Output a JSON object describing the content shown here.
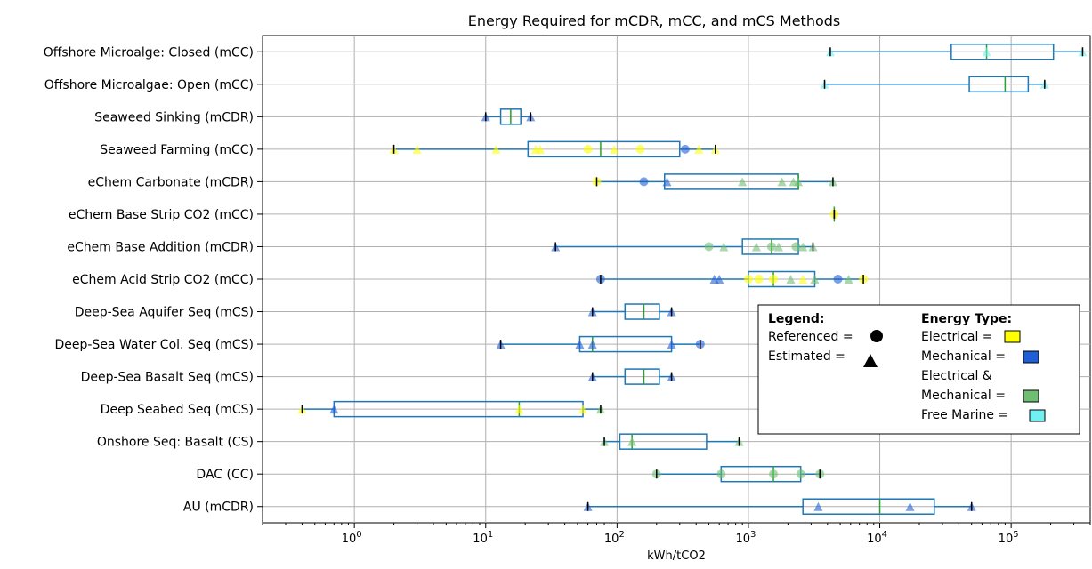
{
  "chart_data": {
    "type": "box",
    "title": "Energy Required for mCDR, mCC, and mCS Methods",
    "xlabel": "kWh/tCO2",
    "ylabel": "",
    "xscale": "log",
    "xlim": [
      0.2,
      400000
    ],
    "xticks": [
      {
        "value": 1,
        "base": "10",
        "exp": "0"
      },
      {
        "value": 10,
        "base": "10",
        "exp": "1"
      },
      {
        "value": 100,
        "base": "10",
        "exp": "2"
      },
      {
        "value": 1000,
        "base": "10",
        "exp": "3"
      },
      {
        "value": 10000,
        "base": "10",
        "exp": "4"
      },
      {
        "value": 100000,
        "base": "10",
        "exp": "5"
      }
    ],
    "grid": true,
    "colors": {
      "box": "#1f77b4",
      "median": "#2ca02c",
      "electrical": "#ffff00",
      "mechanical": "#1f5fd6",
      "electrical_mechanical": "#6fbf73",
      "free_marine": "#70f0f0"
    },
    "categories": [
      {
        "label": "Offshore Microalge: Closed (mCC)",
        "whisker": [
          4200,
          350000
        ],
        "box": [
          35000,
          210000
        ],
        "median": 65000,
        "points": [
          {
            "x": 4200,
            "shape": "tri",
            "energy": "free_marine"
          },
          {
            "x": 65000,
            "shape": "tri",
            "energy": "free_marine"
          },
          {
            "x": 350000,
            "shape": "tri",
            "energy": "free_marine"
          }
        ]
      },
      {
        "label": "Offshore Microalgae: Open (mCC)",
        "whisker": [
          3800,
          180000
        ],
        "box": [
          48000,
          135000
        ],
        "median": 90000,
        "points": [
          {
            "x": 3800,
            "shape": "tri",
            "energy": "free_marine"
          },
          {
            "x": 180000,
            "shape": "tri",
            "energy": "free_marine"
          }
        ]
      },
      {
        "label": "Seaweed Sinking (mCDR)",
        "whisker": [
          10,
          22
        ],
        "box": [
          13,
          18.5
        ],
        "median": 15.5,
        "points": [
          {
            "x": 10,
            "shape": "tri",
            "energy": "mechanical"
          },
          {
            "x": 22,
            "shape": "tri",
            "energy": "mechanical"
          }
        ]
      },
      {
        "label": "Seaweed Farming (mCC)",
        "whisker": [
          2,
          560
        ],
        "box": [
          21,
          300
        ],
        "median": 75,
        "points": [
          {
            "x": 2,
            "shape": "tri",
            "energy": "electrical"
          },
          {
            "x": 3,
            "shape": "tri",
            "energy": "electrical"
          },
          {
            "x": 12,
            "shape": "tri",
            "energy": "electrical"
          },
          {
            "x": 24,
            "shape": "tri",
            "energy": "electrical"
          },
          {
            "x": 26,
            "shape": "tri",
            "energy": "electrical"
          },
          {
            "x": 60,
            "shape": "circle",
            "energy": "electrical"
          },
          {
            "x": 95,
            "shape": "tri",
            "energy": "electrical"
          },
          {
            "x": 150,
            "shape": "circle",
            "energy": "electrical"
          },
          {
            "x": 330,
            "shape": "circle",
            "energy": "mechanical"
          },
          {
            "x": 420,
            "shape": "tri",
            "energy": "electrical"
          },
          {
            "x": 560,
            "shape": "tri",
            "energy": "electrical"
          }
        ]
      },
      {
        "label": "eChem Carbonate (mCDR)",
        "whisker": [
          70,
          4400
        ],
        "box": [
          230,
          2400
        ],
        "median": 2400,
        "points": [
          {
            "x": 70,
            "shape": "circle",
            "energy": "electrical"
          },
          {
            "x": 160,
            "shape": "circle",
            "energy": "mechanical"
          },
          {
            "x": 240,
            "shape": "tri",
            "energy": "mechanical"
          },
          {
            "x": 900,
            "shape": "tri",
            "energy": "electrical_mechanical"
          },
          {
            "x": 1800,
            "shape": "tri",
            "energy": "electrical_mechanical"
          },
          {
            "x": 2200,
            "shape": "tri",
            "energy": "electrical_mechanical"
          },
          {
            "x": 2400,
            "shape": "tri",
            "energy": "electrical_mechanical"
          },
          {
            "x": 4400,
            "shape": "tri",
            "energy": "electrical_mechanical"
          }
        ]
      },
      {
        "label": "eChem Base Strip CO2 (mCC)",
        "whisker": [
          4500,
          4500
        ],
        "box": null,
        "median": 4500,
        "points": [
          {
            "x": 4500,
            "shape": "circle",
            "energy": "electrical"
          }
        ]
      },
      {
        "label": "eChem Base Addition (mCDR)",
        "whisker": [
          34,
          3100
        ],
        "box": [
          900,
          2400
        ],
        "median": 1500,
        "points": [
          {
            "x": 34,
            "shape": "tri",
            "energy": "mechanical"
          },
          {
            "x": 500,
            "shape": "circle",
            "energy": "electrical_mechanical"
          },
          {
            "x": 650,
            "shape": "tri",
            "energy": "electrical_mechanical"
          },
          {
            "x": 1150,
            "shape": "tri",
            "energy": "electrical_mechanical"
          },
          {
            "x": 1500,
            "shape": "circle",
            "energy": "electrical_mechanical"
          },
          {
            "x": 1700,
            "shape": "tri",
            "energy": "electrical_mechanical"
          },
          {
            "x": 2300,
            "shape": "circle",
            "energy": "electrical_mechanical"
          },
          {
            "x": 2600,
            "shape": "tri",
            "energy": "electrical_mechanical"
          },
          {
            "x": 3100,
            "shape": "tri",
            "energy": "electrical_mechanical"
          }
        ]
      },
      {
        "label": "eChem Acid Strip CO2 (mCC)",
        "whisker": [
          75,
          7500
        ],
        "box": [
          1000,
          3200
        ],
        "median": 1550,
        "points": [
          {
            "x": 75,
            "shape": "circle",
            "energy": "mechanical"
          },
          {
            "x": 550,
            "shape": "tri",
            "energy": "mechanical"
          },
          {
            "x": 600,
            "shape": "tri",
            "energy": "mechanical"
          },
          {
            "x": 1000,
            "shape": "circle",
            "energy": "electrical"
          },
          {
            "x": 1200,
            "shape": "circle",
            "energy": "electrical"
          },
          {
            "x": 1550,
            "shape": "circle",
            "energy": "electrical"
          },
          {
            "x": 2100,
            "shape": "tri",
            "energy": "electrical_mechanical"
          },
          {
            "x": 2600,
            "shape": "tri",
            "energy": "electrical"
          },
          {
            "x": 3200,
            "shape": "tri",
            "energy": "electrical_mechanical"
          },
          {
            "x": 4800,
            "shape": "circle",
            "energy": "mechanical"
          },
          {
            "x": 5800,
            "shape": "tri",
            "energy": "electrical_mechanical"
          },
          {
            "x": 7500,
            "shape": "circle",
            "energy": "electrical"
          }
        ]
      },
      {
        "label": "Deep-Sea Aquifer Seq (mCS)",
        "whisker": [
          65,
          260
        ],
        "box": [
          115,
          210
        ],
        "median": 160,
        "points": [
          {
            "x": 65,
            "shape": "tri",
            "energy": "mechanical"
          },
          {
            "x": 260,
            "shape": "tri",
            "energy": "mechanical"
          }
        ]
      },
      {
        "label": "Deep-Sea Water Col. Seq (mCS)",
        "whisker": [
          13,
          430
        ],
        "box": [
          52,
          260
        ],
        "median": 65,
        "points": [
          {
            "x": 13,
            "shape": "tri",
            "energy": "mechanical"
          },
          {
            "x": 52,
            "shape": "tri",
            "energy": "mechanical"
          },
          {
            "x": 65,
            "shape": "tri",
            "energy": "mechanical"
          },
          {
            "x": 260,
            "shape": "tri",
            "energy": "mechanical"
          },
          {
            "x": 430,
            "shape": "circle",
            "energy": "mechanical"
          }
        ]
      },
      {
        "label": "Deep-Sea Basalt Seq (mCS)",
        "whisker": [
          65,
          260
        ],
        "box": [
          115,
          210
        ],
        "median": 160,
        "points": [
          {
            "x": 65,
            "shape": "tri",
            "energy": "mechanical"
          },
          {
            "x": 260,
            "shape": "tri",
            "energy": "mechanical"
          }
        ]
      },
      {
        "label": "Deep Seabed Seq (mCS)",
        "whisker": [
          0.4,
          75
        ],
        "box": [
          0.7,
          55
        ],
        "median": 18,
        "points": [
          {
            "x": 0.4,
            "shape": "tri",
            "energy": "electrical"
          },
          {
            "x": 0.7,
            "shape": "tri",
            "energy": "mechanical"
          },
          {
            "x": 18,
            "shape": "tri",
            "energy": "electrical"
          },
          {
            "x": 55,
            "shape": "tri",
            "energy": "electrical"
          },
          {
            "x": 75,
            "shape": "tri",
            "energy": "electrical_mechanical"
          }
        ]
      },
      {
        "label": "Onshore Seq: Basalt (CS)",
        "whisker": [
          80,
          850
        ],
        "box": [
          105,
          480
        ],
        "median": 130,
        "points": [
          {
            "x": 80,
            "shape": "tri",
            "energy": "electrical_mechanical"
          },
          {
            "x": 130,
            "shape": "tri",
            "energy": "electrical_mechanical"
          },
          {
            "x": 850,
            "shape": "tri",
            "energy": "electrical_mechanical"
          }
        ]
      },
      {
        "label": "DAC (CC)",
        "whisker": [
          200,
          3500
        ],
        "box": [
          620,
          2500
        ],
        "median": 1550,
        "points": [
          {
            "x": 200,
            "shape": "circle",
            "energy": "electrical_mechanical"
          },
          {
            "x": 620,
            "shape": "circle",
            "energy": "electrical_mechanical"
          },
          {
            "x": 1550,
            "shape": "circle",
            "energy": "electrical_mechanical"
          },
          {
            "x": 2500,
            "shape": "circle",
            "energy": "electrical_mechanical"
          },
          {
            "x": 3500,
            "shape": "circle",
            "energy": "electrical_mechanical"
          }
        ]
      },
      {
        "label": "AU (mCDR)",
        "whisker": [
          60,
          50000
        ],
        "box": [
          2600,
          26000
        ],
        "median": 10000,
        "points": [
          {
            "x": 60,
            "shape": "tri",
            "energy": "mechanical"
          },
          {
            "x": 3400,
            "shape": "tri",
            "energy": "mechanical"
          },
          {
            "x": 17000,
            "shape": "tri",
            "energy": "mechanical"
          },
          {
            "x": 50000,
            "shape": "tri",
            "energy": "mechanical"
          }
        ]
      }
    ],
    "legend": {
      "placement": "lower-right",
      "title_left": "Legend:",
      "referenced": "Referenced =",
      "estimated": "Estimated =",
      "title_right": "Energy Type:",
      "electrical": "Electrical =",
      "mechanical": "Mechanical =",
      "elec_mech_1": "Electrical &",
      "elec_mech_2": "Mechanical =",
      "free_marine": "Free Marine ="
    }
  }
}
